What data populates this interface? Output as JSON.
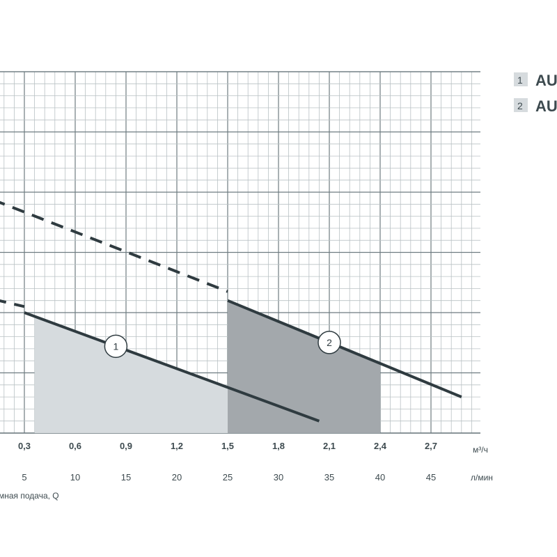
{
  "chart_data": {
    "type": "line",
    "xlabel": "мная подача, Q",
    "x_unit_primary": "м³/ч",
    "x_unit_secondary": "л/мин",
    "x_primary_ticks": [
      "0,3",
      "0,6",
      "0,9",
      "1,2",
      "1,5",
      "1,8",
      "2,1",
      "2,4",
      "2,7"
    ],
    "x_secondary_ticks": [
      "5",
      "10",
      "15",
      "20",
      "25",
      "30",
      "35",
      "40",
      "45"
    ],
    "xlim": [
      0,
      49
    ],
    "ylim": [
      0,
      8
    ],
    "grid": true,
    "legend": {
      "placement": "top-right",
      "entries": [
        {
          "number": "1",
          "label": "AU"
        },
        {
          "number": "2",
          "label": "AU"
        }
      ]
    },
    "series": [
      {
        "marker": "1",
        "dashed_segment": [
          [
            0,
            2.3
          ],
          [
            5,
            2.1
          ]
        ],
        "solid_segment": [
          [
            5,
            2.0
          ],
          [
            34,
            0.2
          ]
        ],
        "working_range": [
          6,
          25
        ],
        "marker_x": 14,
        "fill": "#d6dbde"
      },
      {
        "marker": "2",
        "dashed_segment": [
          [
            0,
            4.0
          ],
          [
            25,
            2.35
          ]
        ],
        "solid_segment": [
          [
            25,
            2.2
          ],
          [
            48,
            0.6
          ]
        ],
        "working_range": [
          25,
          40
        ],
        "marker_x": 35,
        "fill": "#a3a8ac"
      }
    ]
  },
  "colors": {
    "grid_major": "#6e7b80",
    "grid_minor": "#b9c1c4",
    "curve": "#2f3b40",
    "text": "#3d4a4f",
    "legend_box": "#d6dbde"
  }
}
